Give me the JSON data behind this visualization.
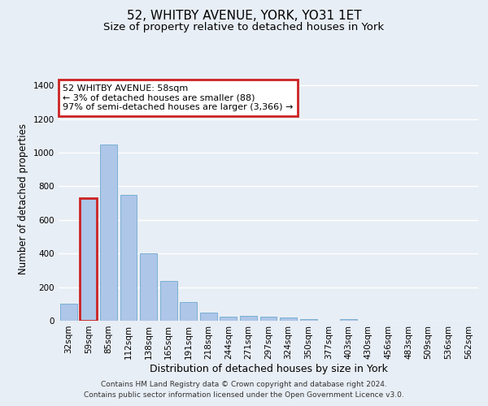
{
  "title": "52, WHITBY AVENUE, YORK, YO31 1ET",
  "subtitle": "Size of property relative to detached houses in York",
  "xlabel": "Distribution of detached houses by size in York",
  "ylabel": "Number of detached properties",
  "categories": [
    "32sqm",
    "59sqm",
    "85sqm",
    "112sqm",
    "138sqm",
    "165sqm",
    "191sqm",
    "218sqm",
    "244sqm",
    "271sqm",
    "297sqm",
    "324sqm",
    "350sqm",
    "377sqm",
    "403sqm",
    "430sqm",
    "456sqm",
    "483sqm",
    "509sqm",
    "536sqm",
    "562sqm"
  ],
  "values": [
    100,
    730,
    1050,
    750,
    400,
    235,
    110,
    50,
    22,
    30,
    22,
    20,
    12,
    0,
    12,
    0,
    0,
    0,
    0,
    0,
    0
  ],
  "bar_color": "#aec6e8",
  "bar_edge_color": "#7aafd4",
  "highlight_bar_index": 1,
  "highlight_color": "#cc2222",
  "annotation_text": "52 WHITBY AVENUE: 58sqm\n← 3% of detached houses are smaller (88)\n97% of semi-detached houses are larger (3,366) →",
  "annotation_box_color": "#ffffff",
  "annotation_box_edge": "#cc2222",
  "ylim": [
    0,
    1450
  ],
  "yticks": [
    0,
    200,
    400,
    600,
    800,
    1000,
    1200,
    1400
  ],
  "background_color": "#e8eef5",
  "plot_background": "#e8eef5",
  "grid_color": "#ffffff",
  "footer_line1": "Contains HM Land Registry data © Crown copyright and database right 2024.",
  "footer_line2": "Contains public sector information licensed under the Open Government Licence v3.0.",
  "title_fontsize": 11,
  "subtitle_fontsize": 9.5,
  "xlabel_fontsize": 9,
  "ylabel_fontsize": 8.5,
  "tick_fontsize": 7.5,
  "annotation_fontsize": 8,
  "footer_fontsize": 6.5
}
